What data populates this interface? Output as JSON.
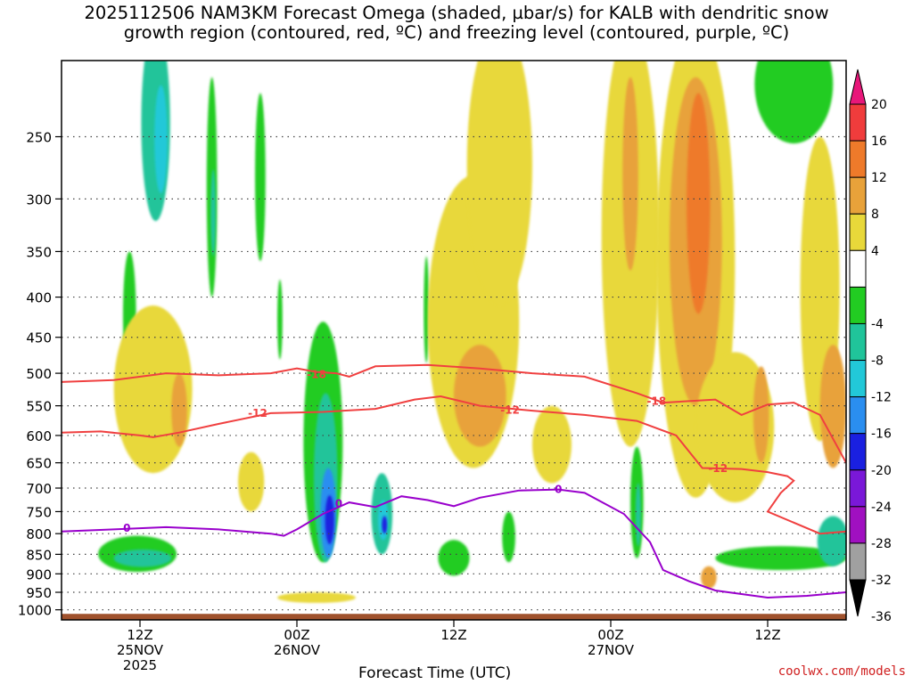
{
  "title_lines": [
    "2025112506 NAM3KM Forecast Omega (shaded, µbar/s) for KALB with dendritic snow",
    "growth region (contoured, red, ºC) and freezing level (contoured, purple, ºC)"
  ],
  "credit": "coolwx.com/models",
  "colors": {
    "ground": "#a0522d",
    "dgz": "#f04040",
    "freezing": "#9900cc",
    "grid": "#444444"
  },
  "chart_data": {
    "type": "heatmap",
    "title": "2025112506 NAM3KM Forecast Omega (shaded, µbar/s) for KALB with dendritic snow growth region (contoured, red, ºC) and freezing level (contoured, purple, ºC)",
    "xlabel": "Forecast Time (UTC)",
    "ylabel": "",
    "xlim_hours": [
      0,
      60
    ],
    "ylim_hpa": [
      1030,
      200
    ],
    "x_ticks": [
      {
        "hour": 6,
        "label": "12Z",
        "sub": [
          "25NOV",
          "2025"
        ]
      },
      {
        "hour": 18,
        "label": "00Z",
        "sub": [
          "26NOV"
        ]
      },
      {
        "hour": 30,
        "label": "12Z",
        "sub": []
      },
      {
        "hour": 42,
        "label": "00Z",
        "sub": [
          "27NOV"
        ]
      },
      {
        "hour": 54,
        "label": "12Z",
        "sub": []
      }
    ],
    "y_ticks": [
      250,
      300,
      350,
      400,
      450,
      500,
      550,
      600,
      650,
      700,
      750,
      800,
      850,
      900,
      950,
      1000
    ],
    "colorbar": {
      "label_levels": [
        20,
        16,
        12,
        8,
        4,
        -4,
        -8,
        -12,
        -16,
        -20,
        -24,
        -28,
        -32,
        -36
      ],
      "bins": [
        {
          "range": "> 20",
          "color": "#e8177a"
        },
        {
          "range": "16 to 20",
          "color": "#f03c3c"
        },
        {
          "range": "12 to 16",
          "color": "#ee7a2a"
        },
        {
          "range": "8 to 12",
          "color": "#e8a23a"
        },
        {
          "range": "4 to 8",
          "color": "#e8d83a"
        },
        {
          "range": "-4 to 4",
          "color": "#ffffff"
        },
        {
          "range": "-8 to -4",
          "color": "#22cc22"
        },
        {
          "range": "-12 to -8",
          "color": "#20c49a"
        },
        {
          "range": "-16 to -12",
          "color": "#22c8d8"
        },
        {
          "range": "-20 to -16",
          "color": "#2a8ef0"
        },
        {
          "range": "-24 to -20",
          "color": "#1a20e0"
        },
        {
          "range": "-28 to -24",
          "color": "#7a18d8"
        },
        {
          "range": "-32 to -28",
          "color": "#a010c0"
        },
        {
          "range": "-36 to -32",
          "color": "#a0a0a0"
        },
        {
          "range": "< -36",
          "color": "#000000"
        }
      ]
    },
    "omega_features": [
      {
        "h": 7.2,
        "p": 240,
        "rh": 1.1,
        "rp": 80,
        "v": -8
      },
      {
        "h": 7.6,
        "p": 255,
        "rh": 0.5,
        "rp": 40,
        "v": -12
      },
      {
        "h": 5.2,
        "p": 430,
        "rh": 0.5,
        "rp": 80,
        "v": -5
      },
      {
        "h": 11.5,
        "p": 305,
        "rh": 0.4,
        "rp": 95,
        "v": -5
      },
      {
        "h": 11.6,
        "p": 315,
        "rh": 0.2,
        "rp": 40,
        "v": -9
      },
      {
        "h": 15.2,
        "p": 290,
        "rh": 0.4,
        "rp": 70,
        "v": -5
      },
      {
        "h": 16.7,
        "p": 430,
        "rh": 0.2,
        "rp": 50,
        "v": -5
      },
      {
        "h": 5.8,
        "p": 850,
        "rh": 3.0,
        "rp": 45,
        "v": -7
      },
      {
        "h": 6.2,
        "p": 860,
        "rh": 2.2,
        "rp": 22,
        "v": -9
      },
      {
        "h": 20.0,
        "p": 650,
        "rh": 1.5,
        "rp": 220,
        "v": -6
      },
      {
        "h": 20.2,
        "p": 700,
        "rh": 0.9,
        "rp": 170,
        "v": -11
      },
      {
        "h": 20.4,
        "p": 760,
        "rh": 0.6,
        "rp": 100,
        "v": -17
      },
      {
        "h": 20.5,
        "p": 770,
        "rh": 0.35,
        "rp": 55,
        "v": -22
      },
      {
        "h": 24.5,
        "p": 760,
        "rh": 0.8,
        "rp": 90,
        "v": -8
      },
      {
        "h": 24.6,
        "p": 770,
        "rh": 0.4,
        "rp": 45,
        "v": -14
      },
      {
        "h": 24.7,
        "p": 780,
        "rh": 0.2,
        "rp": 20,
        "v": -21
      },
      {
        "h": 27.9,
        "p": 420,
        "rh": 0.2,
        "rp": 65,
        "v": -5
      },
      {
        "h": 30.0,
        "p": 860,
        "rh": 1.2,
        "rp": 45,
        "v": -6
      },
      {
        "h": 34.2,
        "p": 810,
        "rh": 0.5,
        "rp": 60,
        "v": -5
      },
      {
        "h": 44.0,
        "p": 740,
        "rh": 0.5,
        "rp": 120,
        "v": -6
      },
      {
        "h": 44.1,
        "p": 760,
        "rh": 0.2,
        "rp": 70,
        "v": -10
      },
      {
        "h": 55.0,
        "p": 860,
        "rh": 5.0,
        "rp": 30,
        "v": -7
      },
      {
        "h": 59.0,
        "p": 820,
        "rh": 1.2,
        "rp": 60,
        "v": -9
      },
      {
        "h": 56.0,
        "p": 215,
        "rh": 3.0,
        "rp": 40,
        "v": -6
      },
      {
        "h": 7.0,
        "p": 540,
        "rh": 3.0,
        "rp": 130,
        "v": 5
      },
      {
        "h": 9.0,
        "p": 560,
        "rh": 0.6,
        "rp": 60,
        "v": 9
      },
      {
        "h": 14.5,
        "p": 690,
        "rh": 1.0,
        "rp": 60,
        "v": 5
      },
      {
        "h": 19.5,
        "p": 965,
        "rh": 3.0,
        "rp": 15,
        "v": 5
      },
      {
        "h": 31.5,
        "p": 470,
        "rh": 3.5,
        "rp": 190,
        "v": 6
      },
      {
        "h": 32.0,
        "p": 540,
        "rh": 2.0,
        "rp": 80,
        "v": 9
      },
      {
        "h": 33.5,
        "p": 290,
        "rh": 2.5,
        "rp": 120,
        "v": 5
      },
      {
        "h": 37.5,
        "p": 620,
        "rh": 1.5,
        "rp": 70,
        "v": 5
      },
      {
        "h": 43.5,
        "p": 360,
        "rh": 2.2,
        "rp": 260,
        "v": 6
      },
      {
        "h": 43.5,
        "p": 290,
        "rh": 0.6,
        "rp": 80,
        "v": 10
      },
      {
        "h": 48.5,
        "p": 420,
        "rh": 3.0,
        "rp": 300,
        "v": 6
      },
      {
        "h": 48.5,
        "p": 380,
        "rh": 2.0,
        "rp": 170,
        "v": 10
      },
      {
        "h": 48.7,
        "p": 320,
        "rh": 0.9,
        "rp": 100,
        "v": 13
      },
      {
        "h": 51.5,
        "p": 600,
        "rh": 3.0,
        "rp": 130,
        "v": 7
      },
      {
        "h": 53.5,
        "p": 570,
        "rh": 0.6,
        "rp": 80,
        "v": 10
      },
      {
        "h": 58.0,
        "p": 430,
        "rh": 1.5,
        "rp": 180,
        "v": 6
      },
      {
        "h": 59.0,
        "p": 560,
        "rh": 1.0,
        "rp": 100,
        "v": 9
      },
      {
        "h": 49.5,
        "p": 910,
        "rh": 0.6,
        "rp": 30,
        "v": 9
      }
    ],
    "contours": [
      {
        "name": "-18 ºC (dendritic growth top)",
        "color": "#f04040",
        "label": "-18",
        "label_at": [
          {
            "h": 19.5,
            "p": 502
          },
          {
            "h": 45.5,
            "p": 543
          }
        ],
        "points": [
          [
            0,
            513
          ],
          [
            4,
            510
          ],
          [
            8,
            500
          ],
          [
            12,
            503
          ],
          [
            16,
            500
          ],
          [
            18,
            493
          ],
          [
            19.5,
            498
          ],
          [
            21,
            500
          ],
          [
            22,
            505
          ],
          [
            24,
            490
          ],
          [
            28,
            488
          ],
          [
            32,
            493
          ],
          [
            36,
            500
          ],
          [
            40,
            505
          ],
          [
            44,
            530
          ],
          [
            46,
            545
          ],
          [
            50,
            540
          ],
          [
            52,
            565
          ],
          [
            54,
            548
          ],
          [
            56,
            545
          ],
          [
            58,
            565
          ],
          [
            60,
            650
          ]
        ]
      },
      {
        "name": "-12 ºC (dendritic growth bottom)",
        "color": "#f04040",
        "label": "-12",
        "label_at": [
          {
            "h": 15.0,
            "p": 562
          },
          {
            "h": 34.3,
            "p": 557
          },
          {
            "h": 50.2,
            "p": 661
          }
        ],
        "points": [
          [
            0,
            595
          ],
          [
            3,
            593
          ],
          [
            6,
            600
          ],
          [
            7,
            603
          ],
          [
            9,
            595
          ],
          [
            12,
            580
          ],
          [
            16,
            562
          ],
          [
            20,
            560
          ],
          [
            24,
            555
          ],
          [
            27,
            540
          ],
          [
            29,
            535
          ],
          [
            32,
            550
          ],
          [
            36,
            558
          ],
          [
            40,
            565
          ],
          [
            44,
            575
          ],
          [
            47,
            600
          ],
          [
            49,
            660
          ],
          [
            52,
            662
          ],
          [
            54,
            668
          ],
          [
            55.5,
            676
          ],
          [
            56,
            685
          ],
          [
            55,
            710
          ],
          [
            54,
            750
          ],
          [
            58,
            800
          ],
          [
            60,
            795
          ]
        ]
      },
      {
        "name": "0 ºC (freezing level)",
        "color": "#9900cc",
        "label": "0",
        "label_at": [
          {
            "h": 5.0,
            "p": 787
          },
          {
            "h": 21.2,
            "p": 733
          },
          {
            "h": 38.0,
            "p": 703
          }
        ],
        "points": [
          [
            0,
            795
          ],
          [
            4,
            790
          ],
          [
            8,
            785
          ],
          [
            12,
            790
          ],
          [
            16,
            800
          ],
          [
            17,
            805
          ],
          [
            18,
            790
          ],
          [
            20,
            755
          ],
          [
            22,
            730
          ],
          [
            24,
            740
          ],
          [
            26,
            717
          ],
          [
            28,
            725
          ],
          [
            30,
            738
          ],
          [
            32,
            720
          ],
          [
            35,
            705
          ],
          [
            38,
            703
          ],
          [
            40,
            710
          ],
          [
            43,
            755
          ],
          [
            45,
            820
          ],
          [
            46,
            890
          ],
          [
            48,
            920
          ],
          [
            50,
            945
          ],
          [
            54,
            965
          ],
          [
            57,
            960
          ],
          [
            60,
            950
          ]
        ]
      }
    ],
    "ground_pressure_hpa": 1012
  }
}
